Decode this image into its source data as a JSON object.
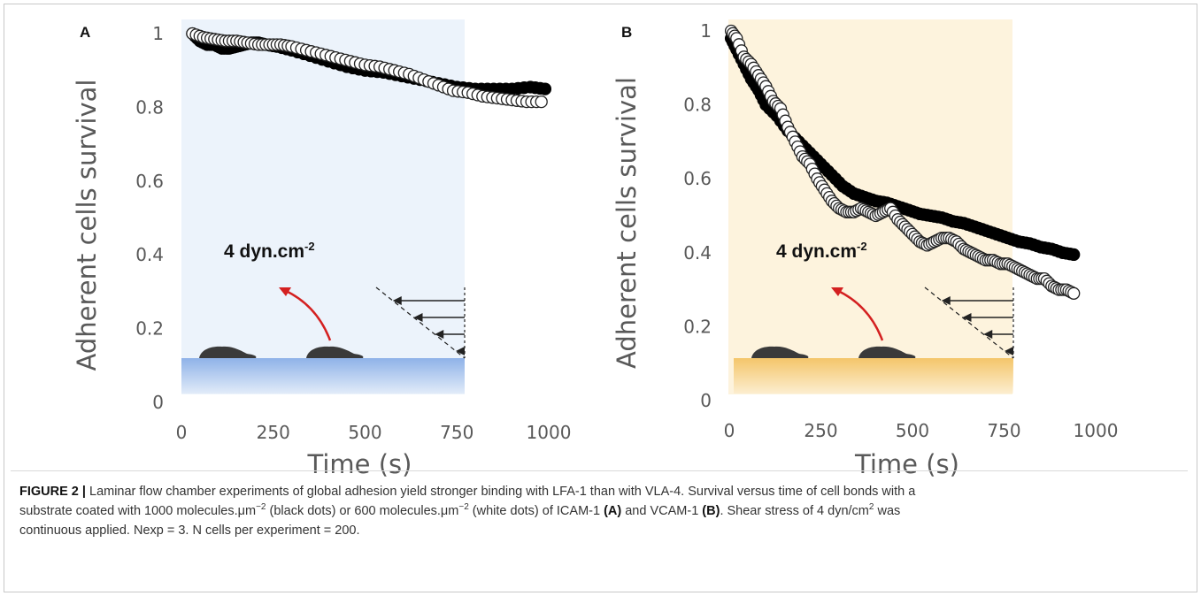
{
  "colors": {
    "panel_a_bg": "#ecf3fb",
    "panel_b_bg": "#fdf3dd",
    "substrate_a": "#8fb2e8",
    "substrate_b": "#f4c56a",
    "arrow": "#d42020",
    "cell": "#3a3a3a",
    "axis_text": "#595959"
  },
  "annotation": {
    "shear_base": "4 dyn.cm",
    "shear_exp": "-2"
  },
  "caption": {
    "figure_label": "FIGURE 2 |",
    "line1": "Laminar flow chamber experiments of global adhesion yield stronger binding with LFA-1 than with VLA-4. Survival versus time of cell bonds with a",
    "line2_a": "substrate coated with 1000 molecules.μm",
    "line2_sup1": "−2",
    "line2_b": " (black dots) or 600 molecules.μm",
    "line2_sup2": "−2",
    "line2_c": " (white dots) of ICAM-1 ",
    "line2_bold1": "(A)",
    "line2_d": " and VCAM-1 ",
    "line2_bold2": "(B)",
    "line2_e": ". Shear stress of 4 dyn/cm",
    "line2_sup3": "2",
    "line2_f": " was",
    "line3": "continuous applied. Nexp = 3. N cells per experiment = 200."
  },
  "chart_data": [
    {
      "panel": "A",
      "type": "scatter",
      "xlabel": "Time (s)",
      "ylabel": "Adherent cells survival",
      "xlim": [
        0,
        1000
      ],
      "ylim": [
        0,
        1
      ],
      "xticks": [
        "0",
        "250",
        "500",
        "750",
        "1000"
      ],
      "yticks": [
        "0",
        "0.2",
        "0.4",
        "0.6",
        "0.8",
        "1"
      ],
      "series": [
        {
          "marker": "black-dots",
          "x": [
            30,
            50,
            70,
            90,
            110,
            130,
            150,
            170,
            190,
            210,
            230,
            260,
            300,
            350,
            400,
            450,
            500,
            550,
            600,
            650,
            700,
            750,
            800,
            850,
            900,
            950,
            990
          ],
          "y": [
            1.0,
            0.98,
            0.97,
            0.97,
            0.96,
            0.96,
            0.965,
            0.97,
            0.975,
            0.975,
            0.97,
            0.965,
            0.955,
            0.94,
            0.925,
            0.91,
            0.9,
            0.895,
            0.885,
            0.875,
            0.865,
            0.855,
            0.85,
            0.85,
            0.85,
            0.855,
            0.85
          ]
        },
        {
          "marker": "white-dots",
          "x": [
            30,
            60,
            90,
            120,
            150,
            180,
            210,
            240,
            270,
            300,
            340,
            380,
            420,
            460,
            500,
            540,
            580,
            620,
            660,
            700,
            740,
            780,
            820,
            860,
            900,
            940,
            980
          ],
          "y": [
            1.0,
            0.99,
            0.985,
            0.98,
            0.98,
            0.975,
            0.97,
            0.97,
            0.97,
            0.965,
            0.955,
            0.945,
            0.935,
            0.925,
            0.915,
            0.91,
            0.9,
            0.89,
            0.875,
            0.86,
            0.845,
            0.84,
            0.83,
            0.825,
            0.82,
            0.815,
            0.815
          ]
        }
      ]
    },
    {
      "panel": "B",
      "type": "scatter",
      "xlabel": "Time (s)",
      "ylabel": "Adherent cells survival",
      "xlim": [
        0,
        1000
      ],
      "ylim": [
        0,
        1
      ],
      "xticks": [
        "0",
        "250",
        "500",
        "750",
        "1000"
      ],
      "yticks": [
        "0",
        "0.2",
        "0.4",
        "0.6",
        "0.8",
        "1"
      ],
      "series": [
        {
          "marker": "black-dots",
          "x": [
            5,
            20,
            40,
            60,
            80,
            100,
            130,
            160,
            190,
            220,
            250,
            280,
            310,
            340,
            370,
            400,
            430,
            460,
            490,
            520,
            550,
            580,
            610,
            640,
            670,
            700,
            730,
            760,
            790,
            820,
            850,
            880,
            910,
            940
          ],
          "y": [
            0.98,
            0.95,
            0.91,
            0.87,
            0.84,
            0.8,
            0.77,
            0.73,
            0.7,
            0.67,
            0.64,
            0.61,
            0.58,
            0.56,
            0.55,
            0.54,
            0.535,
            0.525,
            0.515,
            0.505,
            0.5,
            0.495,
            0.485,
            0.48,
            0.47,
            0.46,
            0.45,
            0.44,
            0.43,
            0.425,
            0.415,
            0.41,
            0.4,
            0.395
          ]
        },
        {
          "marker": "white-dots",
          "x": [
            5,
            20,
            40,
            60,
            80,
            100,
            120,
            140,
            160,
            180,
            200,
            220,
            240,
            260,
            280,
            300,
            320,
            340,
            360,
            380,
            400,
            420,
            440,
            460,
            480,
            500,
            520,
            540,
            560,
            580,
            600,
            620,
            640,
            660,
            680,
            700,
            720,
            740,
            760,
            780,
            800,
            820,
            840,
            860,
            880,
            900,
            920,
            940
          ],
          "y": [
            1.0,
            0.98,
            0.93,
            0.91,
            0.88,
            0.85,
            0.81,
            0.79,
            0.74,
            0.7,
            0.66,
            0.64,
            0.6,
            0.57,
            0.54,
            0.52,
            0.51,
            0.51,
            0.52,
            0.51,
            0.5,
            0.51,
            0.52,
            0.49,
            0.47,
            0.45,
            0.43,
            0.42,
            0.43,
            0.44,
            0.44,
            0.43,
            0.41,
            0.4,
            0.39,
            0.38,
            0.38,
            0.37,
            0.37,
            0.36,
            0.35,
            0.34,
            0.33,
            0.33,
            0.31,
            0.3,
            0.3,
            0.29
          ]
        }
      ]
    }
  ]
}
